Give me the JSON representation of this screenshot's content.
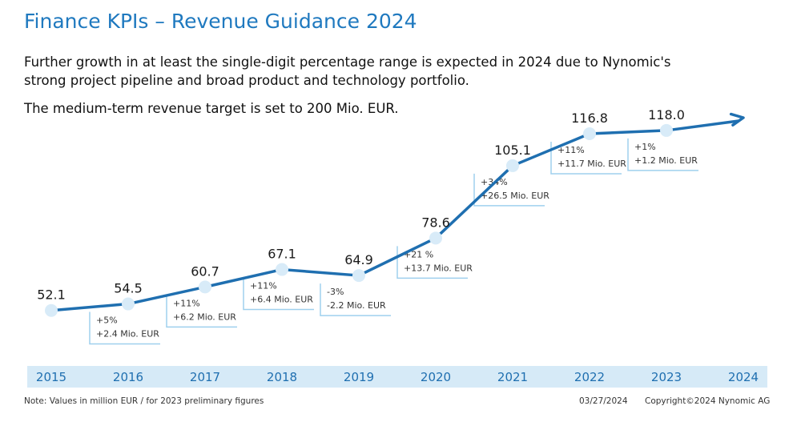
{
  "slide": {
    "title": "Finance KPIs – Revenue Guidance 2024",
    "paragraph1": "Further growth in at least the single-digit percentage range is expected in 2024 due to Nynomic's strong project pipeline and broad product and technology portfolio.",
    "paragraph2": "The medium-term revenue target is set to 200 Mio. EUR.",
    "note": "Note: Values in million EUR / for 2023 preliminary figures",
    "date": "03/27/2024",
    "copyright": "Copyright©2024 Nynomic AG"
  },
  "colors": {
    "title": "#1f79bf",
    "line": "#1f6fb0",
    "marker": "#d8ebf8",
    "axis_band": "#d6eaf7",
    "bracket": "#9fd0ee"
  },
  "chart_data": {
    "type": "line",
    "title": "",
    "xlabel": "",
    "ylabel": "",
    "categories": [
      "2015",
      "2016",
      "2017",
      "2018",
      "2019",
      "2020",
      "2021",
      "2022",
      "2023",
      "2024"
    ],
    "series": [
      {
        "name": "Revenue",
        "values": [
          52.1,
          54.5,
          60.7,
          67.1,
          64.9,
          78.6,
          105.1,
          116.8,
          118.0,
          null
        ],
        "value_labels": [
          "52.1",
          "54.5",
          "60.7",
          "67.1",
          "64.9",
          "78.6",
          "105.1",
          "116.8",
          "118.0",
          ""
        ]
      }
    ],
    "ylim": [
      40,
      130
    ],
    "trend_arrow": "2024",
    "growth_annotations": [
      {
        "year": "2016",
        "pct": "+5%",
        "abs": "+2.4 Mio. EUR"
      },
      {
        "year": "2017",
        "pct": "+11%",
        "abs": "+6.2 Mio. EUR"
      },
      {
        "year": "2018",
        "pct": "+11%",
        "abs": "+6.4 Mio. EUR"
      },
      {
        "year": "2019",
        "pct": "-3%",
        "abs": "-2.2 Mio. EUR"
      },
      {
        "year": "2020",
        "pct": "+21 %",
        "abs": "+13.7 Mio. EUR"
      },
      {
        "year": "2021",
        "pct": "+34%",
        "abs": "+26.5 Mio. EUR"
      },
      {
        "year": "2022",
        "pct": "+11%",
        "abs": "+11.7 Mio. EUR"
      },
      {
        "year": "2023",
        "pct": "+1%",
        "abs": "+1.2 Mio. EUR"
      }
    ]
  }
}
